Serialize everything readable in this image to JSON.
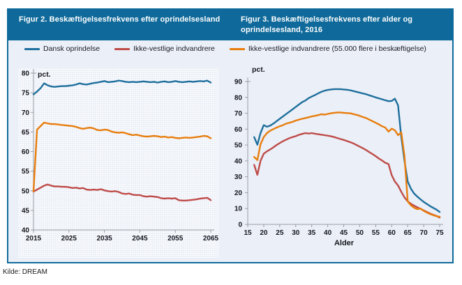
{
  "panel": {
    "fig2_title": "Figur 2. Beskæftigelsesfrekvens efter oprindelsesland",
    "fig3_title": "Figur 3. Beskæftigelsesfrekvens efter alder og oprindelsesland, 2016"
  },
  "legend": {
    "items": [
      {
        "label": "Dansk oprindelse",
        "color": "#1E6F9D"
      },
      {
        "label": "Ikke-vestlige indvandrere",
        "color": "#BE4B48"
      },
      {
        "label": "Ikke-vestlige indvandrere (55.000 flere i beskæftigelse)",
        "color": "#E87D0D"
      }
    ]
  },
  "footer": {
    "source": "Kilde: DREAM"
  },
  "colors": {
    "header_teal": "#0F6A9B",
    "panel_bg": "#EBEFF7",
    "axis_gray": "#9A9DA3",
    "tick_text": "#16161E",
    "series_blue": "#1E6F9D",
    "series_red": "#BE4B48",
    "series_orange": "#E87D0D"
  },
  "chart_data": [
    {
      "type": "line",
      "title": "Figur 2. Beskæftigelsesfrekvens efter oprindelsesland",
      "ylabel": "pct.",
      "xlabel": "",
      "xlim": [
        2015,
        2065
      ],
      "ylim": [
        40,
        80
      ],
      "xticks": [
        2015,
        2025,
        2035,
        2045,
        2055,
        2065
      ],
      "yticks": [
        40,
        45,
        50,
        55,
        60,
        65,
        70,
        75,
        80
      ],
      "grid": false,
      "legend_position": "top",
      "x": [
        2015,
        2016,
        2017,
        2018,
        2019,
        2020,
        2021,
        2022,
        2023,
        2024,
        2025,
        2026,
        2027,
        2028,
        2029,
        2030,
        2031,
        2032,
        2033,
        2034,
        2035,
        2036,
        2037,
        2038,
        2039,
        2040,
        2041,
        2042,
        2043,
        2044,
        2045,
        2046,
        2047,
        2048,
        2049,
        2050,
        2051,
        2052,
        2053,
        2054,
        2055,
        2056,
        2057,
        2058,
        2059,
        2060,
        2061,
        2062,
        2063,
        2064,
        2065
      ],
      "series": [
        {
          "name": "Dansk oprindelse",
          "color": "#1E6F9D",
          "values": [
            74.6,
            75.3,
            76.2,
            77.4,
            76.9,
            76.6,
            76.5,
            76.6,
            76.7,
            76.7,
            76.8,
            76.9,
            77.1,
            77.4,
            77.2,
            77.1,
            77.3,
            77.5,
            77.6,
            77.8,
            78.0,
            77.7,
            77.8,
            77.9,
            78.1,
            78.0,
            77.8,
            77.7,
            77.8,
            77.7,
            77.8,
            77.9,
            77.8,
            77.7,
            77.8,
            77.6,
            77.8,
            77.9,
            77.7,
            77.8,
            78.0,
            77.8,
            77.7,
            77.8,
            77.9,
            77.8,
            77.9,
            78.0,
            77.9,
            78.1,
            77.6
          ]
        },
        {
          "name": "Ikke-vestlige indvandrere",
          "color": "#BE4B48",
          "values": [
            49.8,
            50.3,
            50.8,
            51.3,
            51.6,
            51.3,
            51.1,
            51.1,
            51.0,
            51.0,
            50.9,
            50.7,
            50.8,
            50.6,
            50.7,
            50.3,
            50.2,
            50.3,
            50.2,
            50.4,
            50.1,
            49.9,
            49.8,
            49.9,
            49.7,
            49.3,
            49.2,
            49.3,
            49.0,
            48.9,
            48.9,
            48.6,
            48.5,
            48.6,
            48.5,
            48.4,
            48.1,
            48.0,
            48.1,
            48.0,
            48.1,
            47.6,
            47.5,
            47.5,
            47.6,
            47.7,
            47.8,
            48.0,
            48.1,
            48.2,
            47.6
          ]
        },
        {
          "name": "Ikke-vestlige indvandrere (55.000 flere i beskæftigelse)",
          "color": "#E87D0D",
          "values": [
            49.9,
            65.6,
            66.5,
            67.4,
            67.2,
            67.0,
            67.0,
            66.9,
            66.8,
            66.7,
            66.6,
            66.5,
            66.3,
            66.0,
            65.8,
            66.0,
            66.1,
            65.9,
            65.5,
            65.4,
            65.6,
            65.5,
            65.1,
            64.9,
            64.8,
            64.9,
            64.7,
            64.4,
            64.2,
            64.3,
            64.1,
            63.9,
            63.8,
            63.9,
            64.0,
            63.9,
            63.7,
            63.8,
            63.6,
            63.7,
            63.5,
            63.4,
            63.5,
            63.6,
            63.5,
            63.6,
            63.7,
            63.8,
            64.0,
            63.9,
            63.4
          ]
        }
      ]
    },
    {
      "type": "line",
      "title": "Figur 3. Beskæftigelsesfrekvens efter alder og oprindelsesland, 2016",
      "ylabel": "pct.",
      "xlabel": "Alder",
      "xlim": [
        15,
        75
      ],
      "ylim": [
        0,
        90
      ],
      "xticks": [
        15,
        20,
        25,
        30,
        35,
        40,
        45,
        50,
        55,
        60,
        65,
        70,
        75
      ],
      "yticks": [
        0,
        10,
        20,
        30,
        40,
        50,
        60,
        70,
        80,
        90
      ],
      "grid": false,
      "legend_position": "top",
      "x": [
        17,
        18,
        19,
        20,
        21,
        22,
        23,
        24,
        25,
        26,
        27,
        28,
        29,
        30,
        31,
        32,
        33,
        34,
        35,
        36,
        37,
        38,
        39,
        40,
        41,
        42,
        43,
        44,
        45,
        46,
        47,
        48,
        49,
        50,
        51,
        52,
        53,
        54,
        55,
        56,
        57,
        58,
        59,
        60,
        61,
        62,
        63,
        64,
        65,
        66,
        67,
        68,
        69,
        70,
        71,
        72,
        73,
        74,
        75
      ],
      "series": [
        {
          "name": "Dansk oprindelse",
          "color": "#1E6F9D",
          "values": [
            55,
            50.2,
            57.5,
            62.5,
            61.5,
            62.2,
            63.5,
            65,
            66.5,
            68,
            69.5,
            71,
            72.5,
            74,
            75.5,
            77,
            78,
            79.5,
            80.5,
            81.5,
            82.5,
            83.5,
            84.2,
            84.7,
            85,
            85.2,
            85.2,
            85.2,
            85,
            84.8,
            84.5,
            84,
            83.5,
            83,
            82.5,
            82,
            81.3,
            80.7,
            80,
            79.4,
            78.8,
            78.2,
            77.6,
            77.8,
            79.2,
            75,
            55,
            40,
            27,
            22.5,
            19.5,
            17.5,
            15.8,
            14.2,
            12.8,
            11.5,
            10.4,
            9.3,
            7.8
          ]
        },
        {
          "name": "Ikke-vestlige indvandrere",
          "color": "#BE4B48",
          "values": [
            37.5,
            31.2,
            40,
            44.5,
            46,
            47.2,
            48.5,
            50,
            51.2,
            52.4,
            53.4,
            54.3,
            55,
            55.6,
            56.4,
            57,
            57.5,
            57.2,
            57.5,
            57.1,
            56.8,
            56.5,
            56.2,
            55.9,
            55.5,
            55,
            54.4,
            53.8,
            53.2,
            52.5,
            51.8,
            51,
            50,
            49,
            48,
            46.8,
            45.5,
            44.3,
            43,
            41.5,
            40.2,
            38.8,
            38,
            31,
            27,
            24.5,
            20.5,
            17,
            14.5,
            13,
            11.8,
            10.8,
            9.8,
            8.8,
            7.8,
            6.8,
            6,
            5.3,
            4.3
          ]
        },
        {
          "name": "Ikke-vestlige indvandrere (55.000 flere i beskæftigelse)",
          "color": "#E87D0D",
          "values": [
            42.5,
            40.5,
            50.5,
            55,
            57.5,
            59,
            60,
            61,
            61.8,
            62.5,
            63.5,
            64,
            64.6,
            65.4,
            66,
            66.5,
            67,
            67.5,
            68,
            68.4,
            68.8,
            69.4,
            69.2,
            69.6,
            70,
            70.3,
            70.5,
            70.5,
            70.3,
            70.1,
            70,
            69.5,
            69,
            68.4,
            67.6,
            67,
            66,
            65,
            64,
            63,
            61.8,
            61,
            58.5,
            60.3,
            59.3,
            56.2,
            58,
            43,
            14.5,
            12,
            10.5,
            9.6,
            10,
            8.5,
            7.4,
            6.5,
            5.8,
            5.2,
            4.8
          ]
        }
      ]
    }
  ]
}
